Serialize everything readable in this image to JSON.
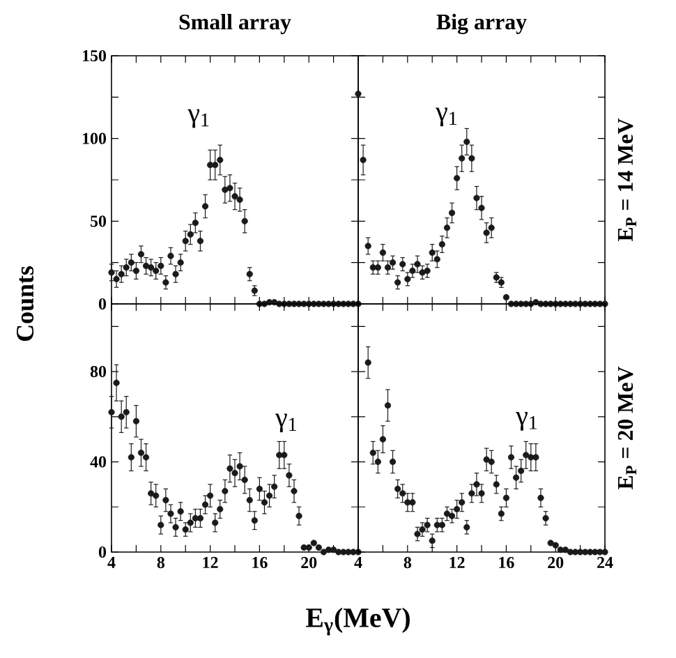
{
  "chart_data": [
    {
      "type": "scatter",
      "title": "Small array",
      "ylabel": "Counts",
      "marker": "circle",
      "color": "#1a1a1a",
      "tick_labels": "y",
      "xlim": [
        4,
        24
      ],
      "ylim": [
        0,
        150
      ],
      "xticks": [
        {
          "value": 4,
          "label": null
        },
        {
          "value": 6,
          "label": null
        },
        {
          "value": 8,
          "label": null
        },
        {
          "value": 10,
          "label": null
        },
        {
          "value": 12,
          "label": null
        },
        {
          "value": 14,
          "label": null
        },
        {
          "value": 16,
          "label": null
        },
        {
          "value": 18,
          "label": null
        },
        {
          "value": 20,
          "label": null
        },
        {
          "value": 22,
          "label": null
        },
        {
          "value": 24,
          "label": null
        }
      ],
      "yticks": [
        0,
        {
          "value": 25,
          "label": null
        },
        50,
        {
          "value": 75,
          "label": null
        },
        100,
        {
          "value": 125,
          "label": null
        },
        150
      ],
      "annotations": [
        "γ$_{1}$"
      ],
      "x": [
        4.0,
        4.4,
        4.8,
        5.2,
        5.6,
        6.0,
        6.4,
        6.8,
        7.2,
        7.6,
        8.0,
        8.4,
        8.8,
        9.2,
        9.6,
        10.0,
        10.4,
        10.8,
        11.2,
        11.6,
        12.0,
        12.4,
        12.8,
        13.2,
        13.6,
        14.0,
        14.4,
        14.8,
        15.2,
        15.6,
        16.0,
        16.4,
        16.8,
        17.2,
        17.6,
        18.0,
        18.4,
        18.8,
        19.2,
        19.6,
        20.0,
        20.4,
        20.8,
        21.2,
        21.6,
        22.0,
        22.4,
        22.8,
        23.2,
        23.6,
        24.0
      ],
      "values": [
        19,
        15,
        18,
        22,
        25,
        20,
        30,
        23,
        22,
        20,
        23,
        13,
        29,
        18,
        25,
        38,
        42,
        49,
        38,
        59,
        84,
        84,
        87,
        69,
        70,
        65,
        63,
        50,
        18,
        8,
        0,
        0,
        1,
        1,
        0,
        0,
        0,
        0,
        0,
        0,
        0,
        0,
        0,
        0,
        0,
        0,
        0,
        0,
        0,
        0,
        0
      ],
      "errors": [
        5,
        5,
        5,
        5,
        5,
        5,
        5,
        5,
        5,
        5,
        5,
        4,
        5,
        5,
        5,
        6,
        6,
        6,
        6,
        7,
        9,
        9,
        9,
        8,
        8,
        8,
        7,
        7,
        4,
        3,
        null,
        null,
        null,
        null,
        null,
        null,
        null,
        null,
        null,
        null,
        null,
        null,
        null,
        null,
        null,
        null,
        null,
        null,
        null,
        null,
        null
      ]
    },
    {
      "type": "scatter",
      "title": "Big array",
      "y2label": "E$_{P}$ = 14 MeV",
      "marker": "circle",
      "color": "#1a1a1a",
      "tick_labels": false,
      "xlim": [
        4,
        24
      ],
      "ylim": [
        0,
        150
      ],
      "xticks": [
        {
          "value": 4,
          "label": null
        },
        {
          "value": 6,
          "label": null
        },
        {
          "value": 8,
          "label": null
        },
        {
          "value": 10,
          "label": null
        },
        {
          "value": 12,
          "label": null
        },
        {
          "value": 14,
          "label": null
        },
        {
          "value": 16,
          "label": null
        },
        {
          "value": 18,
          "label": null
        },
        {
          "value": 20,
          "label": null
        },
        {
          "value": 22,
          "label": null
        },
        {
          "value": 24,
          "label": null
        }
      ],
      "yticks": [
        0,
        {
          "value": 25,
          "label": null
        },
        50,
        {
          "value": 75,
          "label": null
        },
        100,
        {
          "value": 125,
          "label": null
        },
        150
      ],
      "annotations": [
        "γ$_{1}$"
      ],
      "x": [
        4.0,
        4.4,
        4.8,
        5.2,
        5.6,
        6.0,
        6.4,
        6.8,
        7.2,
        7.6,
        8.0,
        8.4,
        8.8,
        9.2,
        9.6,
        10.0,
        10.4,
        10.8,
        11.2,
        11.6,
        12.0,
        12.4,
        12.8,
        13.2,
        13.6,
        14.0,
        14.4,
        14.8,
        15.2,
        15.6,
        16.0,
        16.4,
        16.8,
        17.2,
        17.6,
        18.0,
        18.4,
        18.8,
        19.2,
        19.6,
        20.0,
        20.4,
        20.8,
        21.2,
        21.6,
        22.0,
        22.4,
        22.8,
        23.2,
        23.6,
        24.0
      ],
      "values": [
        127,
        87,
        35,
        22,
        22,
        31,
        22,
        25,
        13,
        24,
        15,
        20,
        24,
        19,
        20,
        31,
        27,
        36,
        46,
        55,
        76,
        88,
        98,
        88,
        64,
        58,
        43,
        46,
        16,
        13,
        4,
        0,
        0,
        0,
        0,
        0,
        1,
        0,
        0,
        0,
        0,
        0,
        0,
        0,
        0,
        0,
        0,
        0,
        0,
        0,
        0
      ],
      "errors": [
        null,
        9,
        5,
        4,
        4,
        5,
        4,
        4,
        4,
        4,
        4,
        4,
        5,
        4,
        4,
        5,
        5,
        5,
        6,
        6,
        7,
        8,
        8,
        8,
        7,
        7,
        6,
        6,
        3,
        3,
        null,
        null,
        null,
        null,
        null,
        null,
        null,
        null,
        null,
        null,
        null,
        null,
        null,
        null,
        null,
        null,
        null,
        null,
        null,
        null,
        null
      ]
    },
    {
      "type": "scatter",
      "xlabel": "E$_{γ}$(MeV)",
      "marker": "circle",
      "color": "#1a1a1a",
      "xlim": [
        4,
        24
      ],
      "ylim": [
        0,
        110
      ],
      "xticks": [
        4,
        {
          "value": 6,
          "label": null
        },
        8,
        {
          "value": 10,
          "label": null
        },
        12,
        {
          "value": 14,
          "label": null
        },
        16,
        {
          "value": 18,
          "label": null
        },
        20,
        {
          "value": 22,
          "label": null
        },
        {
          "value": 24,
          "label": null
        }
      ],
      "yticks": [
        0,
        {
          "value": 20,
          "label": null
        },
        40,
        {
          "value": 60,
          "label": null
        },
        80,
        {
          "value": 100,
          "label": null
        }
      ],
      "annotations": [
        "γ$_{1}$"
      ],
      "x": [
        4.0,
        4.4,
        4.8,
        5.2,
        5.6,
        6.0,
        6.4,
        6.8,
        7.2,
        7.6,
        8.0,
        8.4,
        8.8,
        9.2,
        9.6,
        10.0,
        10.4,
        10.8,
        11.2,
        11.6,
        12.0,
        12.4,
        12.8,
        13.2,
        13.6,
        14.0,
        14.4,
        14.8,
        15.2,
        15.6,
        16.0,
        16.4,
        16.8,
        17.2,
        17.6,
        18.0,
        18.4,
        18.8,
        19.2,
        19.6,
        20.0,
        20.4,
        20.8,
        21.2,
        21.6,
        22.0,
        22.4,
        22.8,
        23.2,
        23.6,
        24.0
      ],
      "values": [
        62,
        75,
        60,
        62,
        42,
        58,
        44,
        42,
        26,
        25,
        12,
        23,
        17,
        11,
        18,
        10,
        13,
        15,
        15,
        21,
        25,
        13,
        19,
        27,
        37,
        35,
        38,
        32,
        23,
        14,
        28,
        22,
        25,
        29,
        43,
        43,
        34,
        27,
        16,
        2,
        2,
        4,
        2,
        0,
        1,
        1,
        0,
        0,
        0,
        0,
        0
      ],
      "errors": [
        7,
        8,
        7,
        7,
        6,
        7,
        6,
        6,
        5,
        5,
        4,
        5,
        4,
        4,
        4,
        3,
        4,
        4,
        4,
        4,
        5,
        4,
        4,
        5,
        6,
        6,
        6,
        6,
        5,
        4,
        5,
        5,
        5,
        5,
        6,
        6,
        5,
        5,
        4,
        null,
        null,
        null,
        null,
        null,
        null,
        null,
        null,
        null,
        null,
        null,
        null
      ]
    },
    {
      "type": "scatter",
      "y2label": "E$_{P}$ = 20 MeV",
      "marker": "circle",
      "color": "#1a1a1a",
      "tick_labels": "x",
      "xlim": [
        4,
        24
      ],
      "ylim": [
        0,
        110
      ],
      "xticks": [
        4,
        {
          "value": 6,
          "label": null
        },
        8,
        {
          "value": 10,
          "label": null
        },
        12,
        {
          "value": 14,
          "label": null
        },
        16,
        {
          "value": 18,
          "label": null
        },
        20,
        {
          "value": 22,
          "label": null
        },
        24
      ],
      "yticks": [
        0,
        {
          "value": 20,
          "label": null
        },
        40,
        {
          "value": 60,
          "label": null
        },
        80,
        {
          "value": 100,
          "label": null
        }
      ],
      "annotations": [
        "γ$_{1}$"
      ],
      "x": [
        4.8,
        5.2,
        5.6,
        6.0,
        6.4,
        6.8,
        7.2,
        7.6,
        8.0,
        8.4,
        8.8,
        9.2,
        9.6,
        10.0,
        10.4,
        10.8,
        11.2,
        11.6,
        12.0,
        12.4,
        12.8,
        13.2,
        13.6,
        14.0,
        14.4,
        14.8,
        15.2,
        15.6,
        16.0,
        16.4,
        16.8,
        17.2,
        17.6,
        18.0,
        18.4,
        18.8,
        19.2,
        19.6,
        20.0,
        20.4,
        20.8,
        21.2,
        21.6,
        22.0,
        22.4,
        22.8,
        23.2,
        23.6,
        24.0
      ],
      "values": [
        84,
        44,
        40,
        50,
        65,
        40,
        28,
        26,
        22,
        22,
        8,
        10,
        12,
        5,
        12,
        12,
        17,
        16,
        19,
        22,
        11,
        26,
        30,
        26,
        41,
        40,
        30,
        17,
        24,
        42,
        33,
        36,
        43,
        42,
        42,
        24,
        15,
        4,
        3,
        1,
        1,
        0,
        0,
        0,
        0,
        0,
        0,
        0,
        0
      ],
      "errors": [
        7,
        5,
        5,
        6,
        7,
        5,
        4,
        4,
        4,
        4,
        3,
        3,
        3,
        3,
        3,
        3,
        3,
        3,
        4,
        4,
        3,
        4,
        5,
        4,
        5,
        5,
        4,
        3,
        4,
        5,
        5,
        5,
        6,
        6,
        6,
        4,
        3,
        null,
        null,
        null,
        null,
        null,
        null,
        null,
        null,
        null,
        null,
        null,
        null
      ]
    }
  ]
}
